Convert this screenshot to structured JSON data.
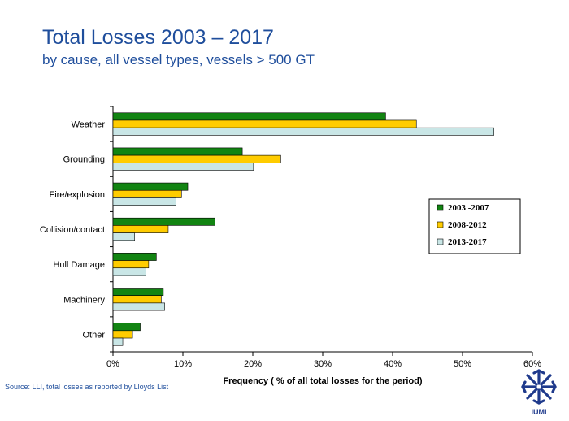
{
  "header": {
    "title": "Total Losses 2003 – 2017",
    "subtitle": "by cause, all vessel types, vessels > 500 GT"
  },
  "footer": {
    "source": "Source: LLI, total losses as reported by Lloyds List",
    "logo_text": "IUMI"
  },
  "colors": {
    "title": "#1f4e9c",
    "s2003": "#128412",
    "s2008": "#ffcc00",
    "s2013": "#c9e6e6"
  },
  "chart_data": {
    "type": "bar",
    "orientation": "horizontal",
    "categories": [
      "Weather",
      "Grounding",
      "Fire/explosion",
      "Collision/contact",
      "Hull Damage",
      "Machinery",
      "Other"
    ],
    "series": [
      {
        "name": "2003 -2007",
        "color": "#128412",
        "values": [
          39,
          18.5,
          10.7,
          14.6,
          6.2,
          7.2,
          3.9
        ]
      },
      {
        "name": "2008-2012",
        "color": "#ffcc00",
        "values": [
          43.4,
          24,
          9.8,
          7.9,
          5.1,
          6.9,
          2.8
        ]
      },
      {
        "name": "2013-2017",
        "color": "#c9e6e6",
        "values": [
          54.5,
          20.1,
          9.0,
          3.1,
          4.7,
          7.4,
          1.4
        ]
      }
    ],
    "xlabel": "Frequency ( % of all total losses for the period)",
    "ylabel": "",
    "xlim": [
      0,
      60
    ],
    "xticks": [
      "0%",
      "10%",
      "20%",
      "30%",
      "40%",
      "50%",
      "60%"
    ],
    "legend_position": "right",
    "grid": false
  }
}
